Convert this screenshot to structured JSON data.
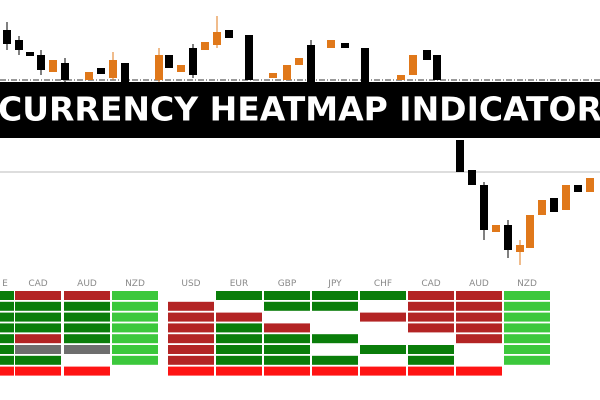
{
  "banner": {
    "title": "CURRENCY HEATMAP INDICATOR"
  },
  "palette": {
    "G": "#0a7d0a",
    "L": "#3cc83c",
    "R": "#b32424",
    "r": "#ff1414",
    "W": "#ffffff",
    "Y": "#6e6e6e"
  },
  "left_heatmap": {
    "columns": [
      "E",
      "CAD",
      "AUD",
      "NZD"
    ],
    "rows": [
      "GRRL",
      "GGGL",
      "GGGL",
      "GGGL",
      "GRGL",
      "GYYL",
      "GGWL",
      "rrrW"
    ]
  },
  "right_heatmap": {
    "columns": [
      "USD",
      "EUR",
      "GBP",
      "JPY",
      "CHF",
      "CAD",
      "AUD",
      "NZD"
    ],
    "rows": [
      "WGGGGRRL",
      "RWGGWRRL",
      "RRWWRRRL",
      "RGRWWRRL",
      "RGGGWWRL",
      "RGGWGGWL",
      "RGGGWGWL",
      "rrrrrrrW"
    ]
  }
}
